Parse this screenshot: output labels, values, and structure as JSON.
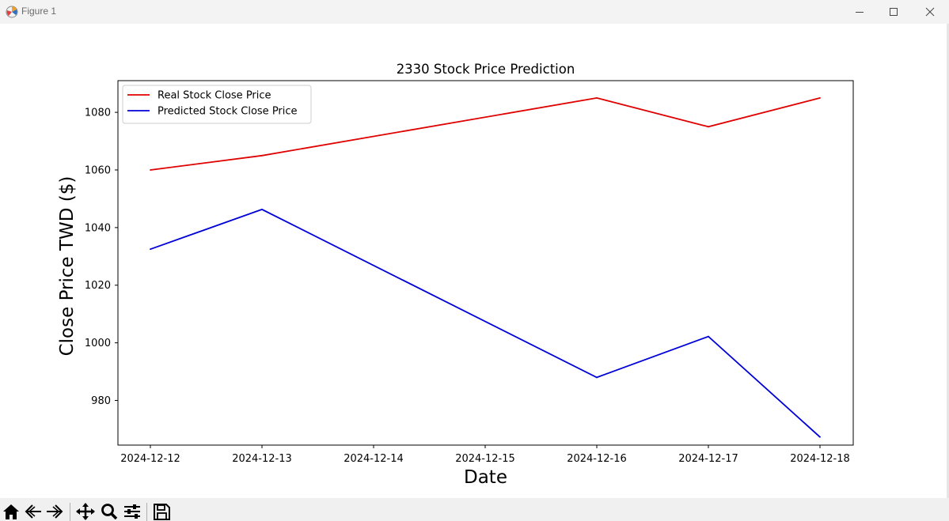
{
  "window": {
    "title": "Figure 1"
  },
  "toolbar": {
    "tools": [
      "home-icon",
      "back-icon",
      "forward-icon",
      "pan-icon",
      "zoom-icon",
      "configure-subplots-icon",
      "save-icon"
    ]
  },
  "colors": {
    "real": "#e00000",
    "predicted": "#0000d8"
  },
  "chart_data": {
    "type": "line",
    "title": "2330 Stock Price Prediction",
    "xlabel": "Date",
    "ylabel": "Close Price TWD ($)",
    "x": [
      "2024-12-12",
      "2024-12-13",
      "2024-12-14",
      "2024-12-15",
      "2024-12-16",
      "2024-12-17",
      "2024-12-18"
    ],
    "x_ticks": [
      "2024-12-12",
      "2024-12-13",
      "2024-12-14",
      "2024-12-15",
      "2024-12-16",
      "2024-12-17",
      "2024-12-18"
    ],
    "y_ticks": [
      980,
      1000,
      1020,
      1040,
      1060,
      1080
    ],
    "ylim": [
      964.5,
      1091
    ],
    "grid": false,
    "legend": "top-left",
    "series": [
      {
        "name": "Real Stock Close Price",
        "points": [
          [
            "2024-12-12",
            1060
          ],
          [
            "2024-12-13",
            1065
          ],
          [
            "2024-12-16",
            1085
          ],
          [
            "2024-12-17",
            1075
          ],
          [
            "2024-12-18",
            1085
          ]
        ]
      },
      {
        "name": "Predicted Stock Close Price",
        "points": [
          [
            "2024-12-12",
            1032.5
          ],
          [
            "2024-12-13",
            1046.3
          ],
          [
            "2024-12-16",
            988
          ],
          [
            "2024-12-17",
            1002.2
          ],
          [
            "2024-12-18",
            967.3
          ]
        ]
      }
    ]
  }
}
